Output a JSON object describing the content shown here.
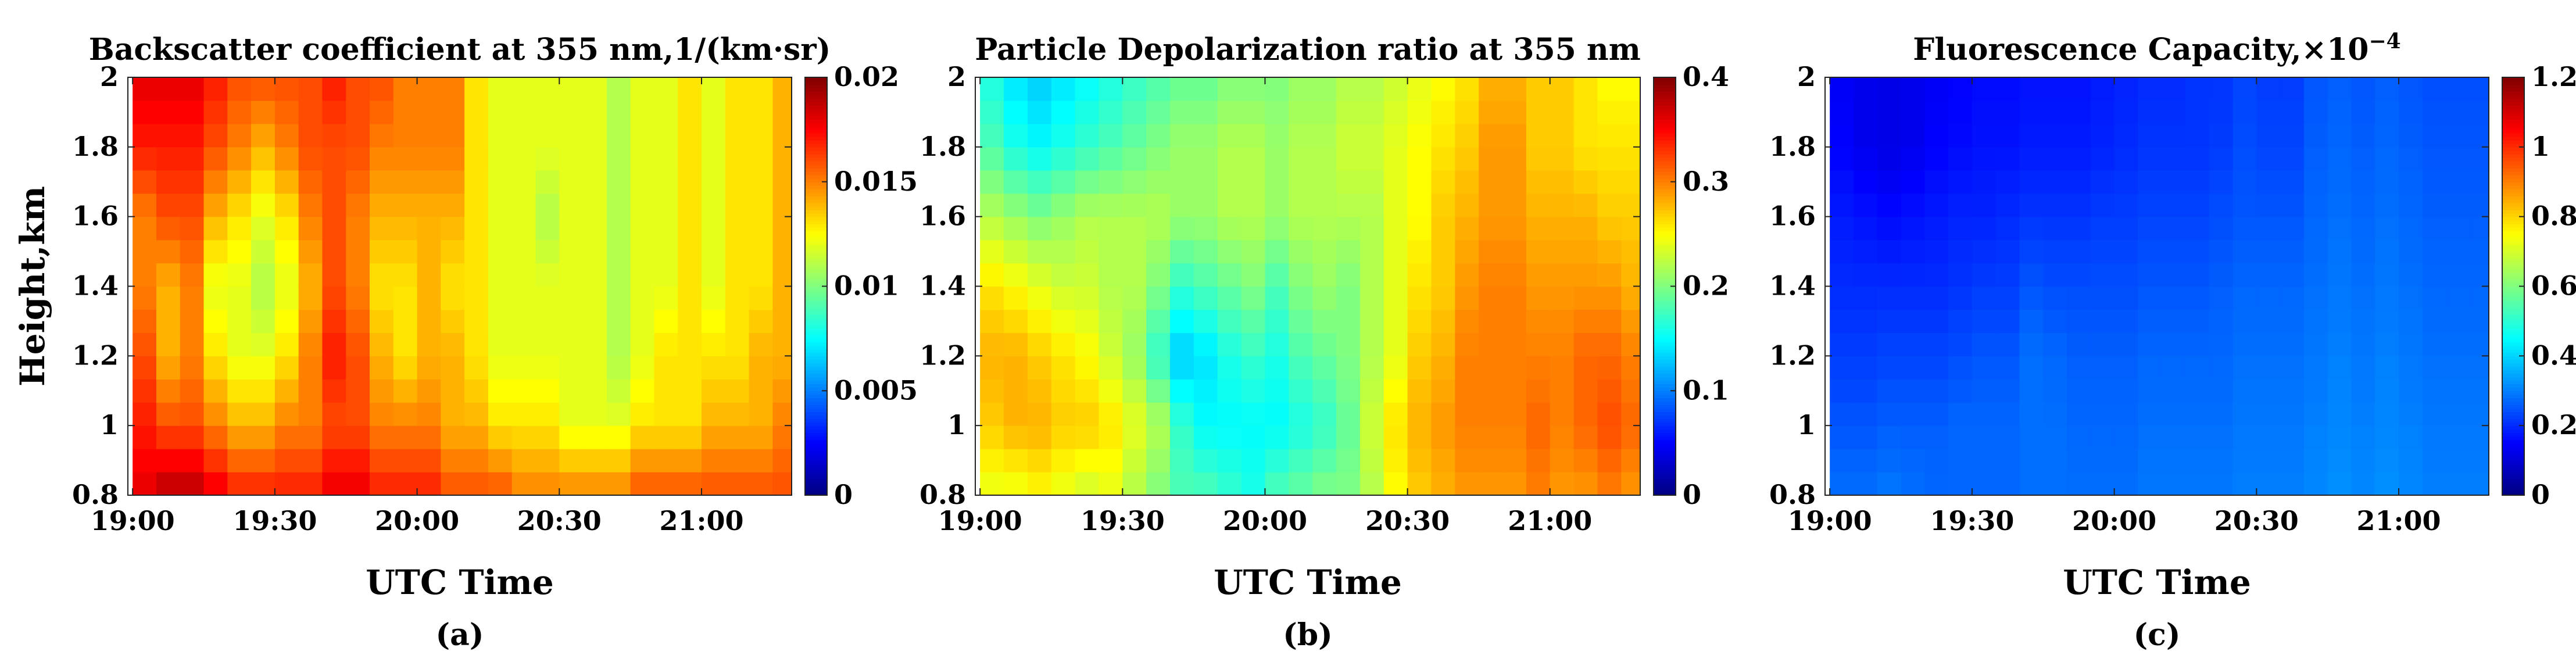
{
  "chart_data": [
    {
      "id": "a",
      "type": "heatmap",
      "title": "Backscatter coefficient at 355 nm,1/(km·sr)",
      "xlabel": "UTC Time",
      "ylabel": "Height,km",
      "panel_label": "(a)",
      "x_ticks": [
        "19:00",
        "19:30",
        "20:00",
        "20:30",
        "21:00"
      ],
      "y_ticks": [
        "2",
        "1.8",
        "1.6",
        "1.4",
        "1.2",
        "1",
        "0.8"
      ],
      "ylim": [
        0.8,
        2
      ],
      "colorbar": {
        "range": [
          0,
          0.02
        ],
        "ticks": [
          "0.02",
          "0.015",
          "0.01",
          "0.005",
          "0"
        ]
      },
      "x_times": [
        "19:00",
        "19:05",
        "19:10",
        "19:15",
        "19:20",
        "19:25",
        "19:30",
        "19:35",
        "19:40",
        "19:45",
        "19:50",
        "19:55",
        "20:00",
        "20:05",
        "20:10",
        "20:15",
        "20:20",
        "20:25",
        "20:30",
        "20:35",
        "20:40",
        "20:45",
        "20:50",
        "20:55",
        "21:00",
        "21:05",
        "21:10",
        "21:15"
      ],
      "heights": [
        0.8,
        1.0,
        1.2,
        1.4,
        1.6,
        1.8,
        2.0
      ],
      "values": [
        [
          0.018,
          0.017,
          0.016,
          0.015,
          0.015,
          0.017,
          0.018
        ],
        [
          0.019,
          0.016,
          0.014,
          0.014,
          0.016,
          0.017,
          0.018
        ],
        [
          0.019,
          0.016,
          0.015,
          0.015,
          0.016,
          0.017,
          0.018
        ],
        [
          0.018,
          0.015,
          0.013,
          0.012,
          0.014,
          0.016,
          0.017
        ],
        [
          0.017,
          0.014,
          0.012,
          0.012,
          0.013,
          0.015,
          0.016
        ],
        [
          0.017,
          0.014,
          0.012,
          0.011,
          0.012,
          0.014,
          0.016
        ],
        [
          0.017,
          0.015,
          0.013,
          0.012,
          0.013,
          0.015,
          0.016
        ],
        [
          0.017,
          0.015,
          0.015,
          0.014,
          0.015,
          0.016,
          0.016
        ],
        [
          0.018,
          0.016,
          0.017,
          0.016,
          0.016,
          0.016,
          0.017
        ],
        [
          0.018,
          0.016,
          0.016,
          0.015,
          0.015,
          0.016,
          0.016
        ],
        [
          0.017,
          0.015,
          0.014,
          0.013,
          0.014,
          0.015,
          0.016
        ],
        [
          0.017,
          0.015,
          0.013,
          0.013,
          0.014,
          0.015,
          0.015
        ],
        [
          0.017,
          0.015,
          0.014,
          0.014,
          0.014,
          0.015,
          0.015
        ],
        [
          0.016,
          0.014,
          0.014,
          0.013,
          0.014,
          0.015,
          0.015
        ],
        [
          0.016,
          0.014,
          0.013,
          0.013,
          0.013,
          0.013,
          0.013
        ],
        [
          0.016,
          0.013,
          0.012,
          0.012,
          0.012,
          0.012,
          0.012
        ],
        [
          0.015,
          0.013,
          0.012,
          0.012,
          0.012,
          0.012,
          0.012
        ],
        [
          0.015,
          0.013,
          0.012,
          0.012,
          0.011,
          0.012,
          0.012
        ],
        [
          0.015,
          0.012,
          0.012,
          0.012,
          0.012,
          0.012,
          0.012
        ],
        [
          0.015,
          0.012,
          0.012,
          0.012,
          0.012,
          0.012,
          0.012
        ],
        [
          0.015,
          0.012,
          0.011,
          0.011,
          0.011,
          0.011,
          0.011
        ],
        [
          0.016,
          0.013,
          0.012,
          0.012,
          0.012,
          0.012,
          0.012
        ],
        [
          0.016,
          0.013,
          0.013,
          0.012,
          0.012,
          0.012,
          0.012
        ],
        [
          0.016,
          0.013,
          0.013,
          0.013,
          0.013,
          0.013,
          0.013
        ],
        [
          0.016,
          0.014,
          0.013,
          0.012,
          0.012,
          0.012,
          0.012
        ],
        [
          0.016,
          0.014,
          0.013,
          0.013,
          0.013,
          0.013,
          0.013
        ],
        [
          0.016,
          0.014,
          0.014,
          0.013,
          0.013,
          0.013,
          0.013
        ],
        [
          0.016,
          0.015,
          0.014,
          0.014,
          0.014,
          0.014,
          0.014
        ]
      ]
    },
    {
      "id": "b",
      "type": "heatmap",
      "title": "Particle Depolarization ratio at 355 nm",
      "xlabel": "UTC Time",
      "ylabel": "",
      "panel_label": "(b)",
      "x_ticks": [
        "19:00",
        "19:30",
        "20:00",
        "20:30",
        "21:00"
      ],
      "y_ticks": [
        "2",
        "1.8",
        "1.6",
        "1.4",
        "1.2",
        "1",
        "0.8"
      ],
      "ylim": [
        0.8,
        2
      ],
      "colorbar": {
        "range": [
          0,
          0.4
        ],
        "ticks": [
          "0.4",
          "0.3",
          "0.2",
          "0.1",
          "0"
        ]
      },
      "x_times": [
        "19:00",
        "19:05",
        "19:10",
        "19:15",
        "19:20",
        "19:25",
        "19:30",
        "19:35",
        "19:40",
        "19:45",
        "19:50",
        "19:55",
        "20:00",
        "20:05",
        "20:10",
        "20:15",
        "20:20",
        "20:25",
        "20:30",
        "20:35",
        "20:40",
        "20:45",
        "20:50",
        "20:55",
        "21:00",
        "21:05",
        "21:10",
        "21:15"
      ],
      "heights": [
        0.8,
        1.0,
        1.2,
        1.4,
        1.6,
        1.8,
        2.0
      ],
      "values": [
        [
          0.24,
          0.27,
          0.28,
          0.26,
          0.22,
          0.18,
          0.16
        ],
        [
          0.24,
          0.28,
          0.28,
          0.25,
          0.21,
          0.16,
          0.14
        ],
        [
          0.25,
          0.28,
          0.27,
          0.24,
          0.2,
          0.15,
          0.13
        ],
        [
          0.24,
          0.27,
          0.26,
          0.23,
          0.21,
          0.16,
          0.14
        ],
        [
          0.23,
          0.27,
          0.25,
          0.23,
          0.22,
          0.17,
          0.15
        ],
        [
          0.24,
          0.26,
          0.23,
          0.22,
          0.22,
          0.18,
          0.16
        ],
        [
          0.22,
          0.24,
          0.21,
          0.22,
          0.22,
          0.19,
          0.17
        ],
        [
          0.2,
          0.22,
          0.17,
          0.2,
          0.22,
          0.2,
          0.18
        ],
        [
          0.18,
          0.17,
          0.13,
          0.17,
          0.21,
          0.21,
          0.19
        ],
        [
          0.18,
          0.15,
          0.14,
          0.18,
          0.21,
          0.21,
          0.19
        ],
        [
          0.17,
          0.15,
          0.16,
          0.19,
          0.22,
          0.22,
          0.2
        ],
        [
          0.16,
          0.15,
          0.17,
          0.2,
          0.22,
          0.22,
          0.2
        ],
        [
          0.18,
          0.15,
          0.16,
          0.18,
          0.21,
          0.21,
          0.2
        ],
        [
          0.19,
          0.16,
          0.18,
          0.2,
          0.22,
          0.22,
          0.21
        ],
        [
          0.2,
          0.17,
          0.19,
          0.21,
          0.22,
          0.22,
          0.21
        ],
        [
          0.2,
          0.19,
          0.2,
          0.2,
          0.22,
          0.23,
          0.22
        ],
        [
          0.22,
          0.23,
          0.22,
          0.22,
          0.22,
          0.23,
          0.22
        ],
        [
          0.25,
          0.26,
          0.24,
          0.24,
          0.24,
          0.24,
          0.23
        ],
        [
          0.27,
          0.28,
          0.27,
          0.26,
          0.25,
          0.25,
          0.24
        ],
        [
          0.28,
          0.29,
          0.28,
          0.27,
          0.27,
          0.26,
          0.25
        ],
        [
          0.29,
          0.3,
          0.3,
          0.29,
          0.28,
          0.27,
          0.26
        ],
        [
          0.29,
          0.3,
          0.3,
          0.3,
          0.29,
          0.29,
          0.28
        ],
        [
          0.29,
          0.3,
          0.3,
          0.3,
          0.29,
          0.29,
          0.28
        ],
        [
          0.3,
          0.31,
          0.3,
          0.29,
          0.28,
          0.27,
          0.27
        ],
        [
          0.29,
          0.3,
          0.3,
          0.29,
          0.28,
          0.27,
          0.27
        ],
        [
          0.29,
          0.31,
          0.31,
          0.29,
          0.28,
          0.26,
          0.26
        ],
        [
          0.3,
          0.32,
          0.31,
          0.29,
          0.27,
          0.26,
          0.25
        ],
        [
          0.29,
          0.31,
          0.3,
          0.28,
          0.27,
          0.26,
          0.25
        ]
      ]
    },
    {
      "id": "c",
      "type": "heatmap",
      "title": "Fluorescence Capacity,×10",
      "title_superscript": "−4",
      "xlabel": "UTC Time",
      "ylabel": "",
      "panel_label": "(c)",
      "x_ticks": [
        "19:00",
        "19:30",
        "20:00",
        "20:30",
        "21:00"
      ],
      "y_ticks": [
        "2",
        "1.8",
        "1.6",
        "1.4",
        "1.2",
        "1",
        "0.8"
      ],
      "ylim": [
        0.8,
        2
      ],
      "colorbar": {
        "range": [
          0,
          1.2
        ],
        "ticks": [
          "1.2",
          "1",
          "0.8",
          "0.6",
          "0.4",
          "0.2",
          "0"
        ]
      },
      "x_times": [
        "19:00",
        "19:05",
        "19:10",
        "19:15",
        "19:20",
        "19:25",
        "19:30",
        "19:35",
        "19:40",
        "19:45",
        "19:50",
        "19:55",
        "20:00",
        "20:05",
        "20:10",
        "20:15",
        "20:20",
        "20:25",
        "20:30",
        "20:35",
        "20:40",
        "20:45",
        "20:50",
        "20:55",
        "21:00",
        "21:05",
        "21:10",
        "21:15"
      ],
      "heights": [
        0.8,
        1.0,
        1.2,
        1.4,
        1.6,
        1.8,
        2.0
      ],
      "values": [
        [
          0.28,
          0.25,
          0.22,
          0.2,
          0.18,
          0.15,
          0.14
        ],
        [
          0.28,
          0.25,
          0.22,
          0.2,
          0.17,
          0.13,
          0.13
        ],
        [
          0.29,
          0.26,
          0.23,
          0.2,
          0.16,
          0.12,
          0.12
        ],
        [
          0.28,
          0.26,
          0.23,
          0.2,
          0.17,
          0.13,
          0.13
        ],
        [
          0.27,
          0.26,
          0.23,
          0.2,
          0.18,
          0.15,
          0.14
        ],
        [
          0.27,
          0.27,
          0.24,
          0.21,
          0.19,
          0.16,
          0.15
        ],
        [
          0.27,
          0.27,
          0.25,
          0.22,
          0.19,
          0.17,
          0.16
        ],
        [
          0.27,
          0.27,
          0.25,
          0.22,
          0.2,
          0.17,
          0.16
        ],
        [
          0.28,
          0.28,
          0.28,
          0.25,
          0.21,
          0.18,
          0.17
        ],
        [
          0.28,
          0.28,
          0.27,
          0.24,
          0.21,
          0.18,
          0.17
        ],
        [
          0.28,
          0.27,
          0.26,
          0.24,
          0.21,
          0.18,
          0.17
        ],
        [
          0.28,
          0.27,
          0.26,
          0.24,
          0.22,
          0.19,
          0.18
        ],
        [
          0.28,
          0.27,
          0.26,
          0.24,
          0.22,
          0.2,
          0.19
        ],
        [
          0.29,
          0.28,
          0.27,
          0.25,
          0.23,
          0.21,
          0.2
        ],
        [
          0.29,
          0.28,
          0.27,
          0.25,
          0.23,
          0.21,
          0.2
        ],
        [
          0.29,
          0.28,
          0.27,
          0.25,
          0.23,
          0.21,
          0.21
        ],
        [
          0.29,
          0.28,
          0.27,
          0.26,
          0.24,
          0.22,
          0.21
        ],
        [
          0.3,
          0.29,
          0.28,
          0.27,
          0.25,
          0.24,
          0.23
        ],
        [
          0.3,
          0.29,
          0.28,
          0.27,
          0.25,
          0.23,
          0.22
        ],
        [
          0.3,
          0.29,
          0.28,
          0.27,
          0.25,
          0.23,
          0.22
        ],
        [
          0.31,
          0.3,
          0.29,
          0.28,
          0.27,
          0.26,
          0.25
        ],
        [
          0.32,
          0.31,
          0.3,
          0.29,
          0.28,
          0.27,
          0.26
        ],
        [
          0.31,
          0.3,
          0.29,
          0.28,
          0.27,
          0.26,
          0.25
        ],
        [
          0.32,
          0.31,
          0.3,
          0.29,
          0.28,
          0.27,
          0.26
        ],
        [
          0.31,
          0.3,
          0.29,
          0.28,
          0.27,
          0.26,
          0.25
        ],
        [
          0.3,
          0.29,
          0.28,
          0.27,
          0.26,
          0.25,
          0.24
        ],
        [
          0.3,
          0.29,
          0.28,
          0.27,
          0.26,
          0.25,
          0.24
        ],
        [
          0.3,
          0.29,
          0.28,
          0.27,
          0.26,
          0.25,
          0.24
        ]
      ]
    }
  ]
}
